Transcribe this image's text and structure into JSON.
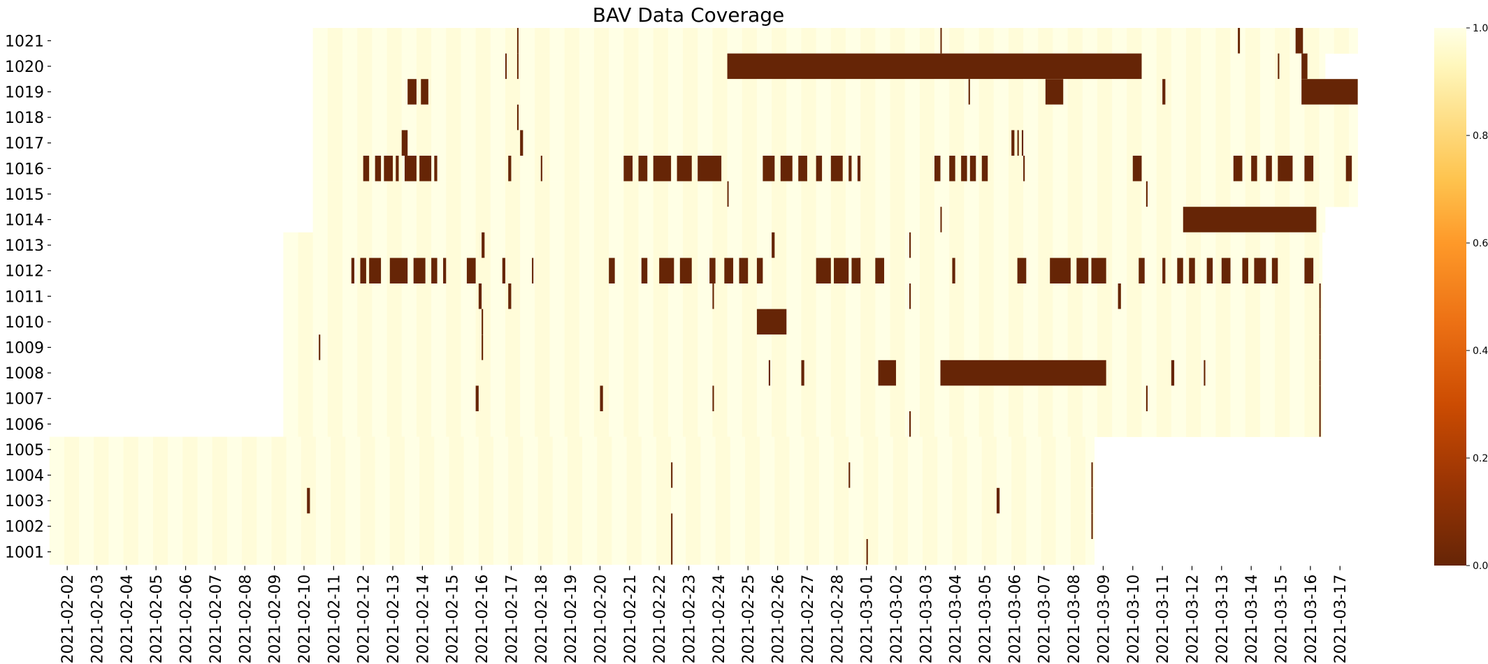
{
  "chart_data": {
    "type": "heatmap",
    "title": "BAV Data Coverage",
    "xlabel": "",
    "ylabel": "",
    "x_dates": [
      "2021-02-02",
      "2021-02-03",
      "2021-02-04",
      "2021-02-05",
      "2021-02-06",
      "2021-02-07",
      "2021-02-08",
      "2021-02-09",
      "2021-02-10",
      "2021-02-11",
      "2021-02-12",
      "2021-02-13",
      "2021-02-14",
      "2021-02-15",
      "2021-02-16",
      "2021-02-17",
      "2021-02-18",
      "2021-02-19",
      "2021-02-20",
      "2021-02-21",
      "2021-02-22",
      "2021-02-23",
      "2021-02-24",
      "2021-02-25",
      "2021-02-26",
      "2021-02-27",
      "2021-02-28",
      "2021-03-01",
      "2021-03-02",
      "2021-03-03",
      "2021-03-04",
      "2021-03-05",
      "2021-03-06",
      "2021-03-07",
      "2021-03-08",
      "2021-03-09",
      "2021-03-10",
      "2021-03-11",
      "2021-03-12",
      "2021-03-13",
      "2021-03-14",
      "2021-03-15",
      "2021-03-16",
      "2021-03-17"
    ],
    "colorbar": {
      "min": 0.0,
      "max": 1.0,
      "ticks": [
        "0.0",
        "0.2",
        "0.4",
        "0.6",
        "0.8",
        "1.0"
      ],
      "colormap": "YlOrBr reversed"
    },
    "colors": {
      "full": "#ffffe5",
      "full_alt": "#fffcd9",
      "empty": "#662506"
    },
    "sensors": [
      {
        "id": "1021",
        "start": "2021-02-10.8",
        "end": "2021-03-18.1",
        "gaps": [
          [
            "2021-02-17.7",
            "2021-02-17.72"
          ],
          [
            "2021-03-04.0",
            "2021-03-04.02"
          ],
          [
            "2021-03-14.05",
            "2021-03-14.12"
          ],
          [
            "2021-03-16.0",
            "2021-03-16.25"
          ]
        ]
      },
      {
        "id": "1020",
        "start": "2021-02-10.8",
        "end": "2021-03-17.0",
        "gaps": [
          [
            "2021-02-17.3",
            "2021-02-17.34"
          ],
          [
            "2021-02-17.7",
            "2021-02-17.72"
          ],
          [
            "2021-02-24.8",
            "2021-03-10.8"
          ],
          [
            "2021-03-15.4",
            "2021-03-15.45"
          ],
          [
            "2021-03-16.2",
            "2021-03-16.4"
          ]
        ]
      },
      {
        "id": "1019",
        "start": "2021-02-10.8",
        "end": "2021-03-18.1",
        "gaps": [
          [
            "2021-02-14.0",
            "2021-02-14.3"
          ],
          [
            "2021-02-14.45",
            "2021-02-14.7"
          ],
          [
            "2021-03-04.95",
            "2021-03-05.0"
          ],
          [
            "2021-03-07.55",
            "2021-03-08.15"
          ],
          [
            "2021-03-11.5",
            "2021-03-11.6"
          ],
          [
            "2021-03-16.2",
            "2021-03-18.1"
          ]
        ]
      },
      {
        "id": "1018",
        "start": "2021-02-10.8",
        "end": "2021-03-18.1",
        "gaps": [
          [
            "2021-02-17.7",
            "2021-02-17.75"
          ]
        ]
      },
      {
        "id": "1017",
        "start": "2021-02-10.8",
        "end": "2021-03-18.1",
        "gaps": [
          [
            "2021-02-13.8",
            "2021-02-14.0"
          ],
          [
            "2021-02-17.8",
            "2021-02-17.9"
          ],
          [
            "2021-03-06.4",
            "2021-03-06.5"
          ],
          [
            "2021-03-06.6",
            "2021-03-06.65"
          ],
          [
            "2021-03-06.75",
            "2021-03-06.8"
          ]
        ]
      },
      {
        "id": "1016",
        "start": "2021-02-10.8",
        "end": "2021-03-18.1",
        "gaps": [
          [
            "2021-02-12.5",
            "2021-02-12.7"
          ],
          [
            "2021-02-12.9",
            "2021-02-13.1"
          ],
          [
            "2021-02-13.2",
            "2021-02-13.5"
          ],
          [
            "2021-02-13.6",
            "2021-02-13.7"
          ],
          [
            "2021-02-13.9",
            "2021-02-14.3"
          ],
          [
            "2021-02-14.4",
            "2021-02-14.8"
          ],
          [
            "2021-02-14.9",
            "2021-02-15.0"
          ],
          [
            "2021-02-17.4",
            "2021-02-17.5"
          ],
          [
            "2021-02-18.5",
            "2021-02-18.55"
          ],
          [
            "2021-02-21.3",
            "2021-02-21.6"
          ],
          [
            "2021-02-21.8",
            "2021-02-22.1"
          ],
          [
            "2021-02-22.3",
            "2021-02-22.9"
          ],
          [
            "2021-02-23.1",
            "2021-02-23.6"
          ],
          [
            "2021-02-23.8",
            "2021-02-24.6"
          ],
          [
            "2021-02-26.0",
            "2021-02-26.4"
          ],
          [
            "2021-02-26.6",
            "2021-02-27.0"
          ],
          [
            "2021-02-27.2",
            "2021-02-27.5"
          ],
          [
            "2021-02-27.8",
            "2021-02-28.0"
          ],
          [
            "2021-02-28.3",
            "2021-02-28.7"
          ],
          [
            "2021-02-28.9",
            "2021-02-29.0"
          ],
          [
            "2021-02-29.2",
            "2021-02-29.3"
          ],
          [
            "2021-03-03.8",
            "2021-03-04.0"
          ],
          [
            "2021-03-04.3",
            "2021-03-04.5"
          ],
          [
            "2021-03-04.7",
            "2021-03-04.9"
          ],
          [
            "2021-03-05.0",
            "2021-03-05.2"
          ],
          [
            "2021-03-05.4",
            "2021-03-05.6"
          ],
          [
            "2021-03-06.8",
            "2021-03-06.85"
          ],
          [
            "2021-03-10.5",
            "2021-03-10.8"
          ],
          [
            "2021-03-13.9",
            "2021-03-14.2"
          ],
          [
            "2021-03-14.5",
            "2021-03-14.7"
          ],
          [
            "2021-03-15.0",
            "2021-03-15.2"
          ],
          [
            "2021-03-15.4",
            "2021-03-15.9"
          ],
          [
            "2021-03-16.3",
            "2021-03-16.6"
          ],
          [
            "2021-03-17.7",
            "2021-03-17.9"
          ]
        ]
      },
      {
        "id": "1015",
        "start": "2021-02-10.8",
        "end": "2021-03-18.1",
        "gaps": [
          [
            "2021-02-24.8",
            "2021-02-24.82"
          ],
          [
            "2021-03-10.95",
            "2021-03-11.0"
          ]
        ]
      },
      {
        "id": "1014",
        "start": "2021-02-10.8",
        "end": "2021-03-17.0",
        "gaps": [
          [
            "2021-03-04.0",
            "2021-03-04.02"
          ],
          [
            "2021-03-12.2",
            "2021-03-16.7"
          ]
        ]
      },
      {
        "id": "1013",
        "start": "2021-02-09.8",
        "end": "2021-03-16.9",
        "gaps": [
          [
            "2021-02-16.5",
            "2021-02-16.6"
          ],
          [
            "2021-02-26.3",
            "2021-02-26.4"
          ],
          [
            "2021-03-02.95",
            "2021-03-03.0"
          ]
        ]
      },
      {
        "id": "1012",
        "start": "2021-02-09.8",
        "end": "2021-03-16.9",
        "gaps": [
          [
            "2021-02-12.1",
            "2021-02-12.2"
          ],
          [
            "2021-02-12.4",
            "2021-02-12.6"
          ],
          [
            "2021-02-12.7",
            "2021-02-13.1"
          ],
          [
            "2021-02-13.4",
            "2021-02-14.0"
          ],
          [
            "2021-02-14.2",
            "2021-02-14.6"
          ],
          [
            "2021-02-14.8",
            "2021-02-15.0"
          ],
          [
            "2021-02-15.2",
            "2021-02-15.3"
          ],
          [
            "2021-02-16.0",
            "2021-02-16.3"
          ],
          [
            "2021-02-17.2",
            "2021-02-17.3"
          ],
          [
            "2021-02-18.2",
            "2021-02-18.25"
          ],
          [
            "2021-02-20.8",
            "2021-02-21.0"
          ],
          [
            "2021-02-21.9",
            "2021-02-22.1"
          ],
          [
            "2021-02-22.5",
            "2021-02-23.0"
          ],
          [
            "2021-02-23.2",
            "2021-02-23.6"
          ],
          [
            "2021-02-24.2",
            "2021-02-24.4"
          ],
          [
            "2021-02-24.7",
            "2021-02-25.0"
          ],
          [
            "2021-02-25.2",
            "2021-02-25.5"
          ],
          [
            "2021-02-25.8",
            "2021-02-26.0"
          ],
          [
            "2021-02-27.8",
            "2021-02-28.3"
          ],
          [
            "2021-02-28.4",
            "2021-02-28.9"
          ],
          [
            "2021-02-29.0",
            "2021-02-29.3"
          ],
          [
            "2021-03-01.2",
            "2021-03-01.3"
          ],
          [
            "2021-03-01.8",
            "2021-03-02.1"
          ],
          [
            "2021-03-04.4",
            "2021-03-04.5"
          ],
          [
            "2021-03-06.6",
            "2021-03-06.9"
          ],
          [
            "2021-03-07.7",
            "2021-03-08.4"
          ],
          [
            "2021-03-08.6",
            "2021-03-09.0"
          ],
          [
            "2021-03-09.1",
            "2021-03-09.6"
          ],
          [
            "2021-03-10.7",
            "2021-03-10.9"
          ],
          [
            "2021-03-11.5",
            "2021-03-11.6"
          ],
          [
            "2021-03-12.0",
            "2021-03-12.2"
          ],
          [
            "2021-03-12.4",
            "2021-03-12.6"
          ],
          [
            "2021-03-13.0",
            "2021-03-13.2"
          ],
          [
            "2021-03-13.5",
            "2021-03-13.8"
          ],
          [
            "2021-03-14.2",
            "2021-03-14.4"
          ],
          [
            "2021-03-14.6",
            "2021-03-15.0"
          ],
          [
            "2021-03-15.2",
            "2021-03-15.4"
          ],
          [
            "2021-03-16.3",
            "2021-03-16.6"
          ]
        ]
      },
      {
        "id": "1011",
        "start": "2021-02-09.8",
        "end": "2021-03-16.9",
        "gaps": [
          [
            "2021-02-16.4",
            "2021-02-16.5"
          ],
          [
            "2021-02-17.4",
            "2021-02-17.5"
          ],
          [
            "2021-02-24.3",
            "2021-02-24.35"
          ],
          [
            "2021-03-02.95",
            "2021-03-03.0"
          ],
          [
            "2021-03-10.0",
            "2021-03-10.1"
          ],
          [
            "2021-03-16.8",
            "2021-03-16.85"
          ]
        ]
      },
      {
        "id": "1010",
        "start": "2021-02-09.8",
        "end": "2021-03-16.9",
        "gaps": [
          [
            "2021-02-16.5",
            "2021-02-16.55"
          ],
          [
            "2021-02-25.8",
            "2021-02-26.8"
          ],
          [
            "2021-03-16.8",
            "2021-03-16.85"
          ]
        ]
      },
      {
        "id": "1009",
        "start": "2021-02-09.8",
        "end": "2021-03-16.9",
        "gaps": [
          [
            "2021-02-11.0",
            "2021-02-11.05"
          ],
          [
            "2021-02-16.5",
            "2021-02-16.55"
          ],
          [
            "2021-03-16.8",
            "2021-03-16.85"
          ]
        ]
      },
      {
        "id": "1008",
        "start": "2021-02-09.8",
        "end": "2021-03-16.9",
        "gaps": [
          [
            "2021-02-26.2",
            "2021-02-26.25"
          ],
          [
            "2021-02-27.3",
            "2021-02-27.4"
          ],
          [
            "2021-03-01.9",
            "2021-03-02.5"
          ],
          [
            "2021-03-04.0",
            "2021-03-09.6"
          ],
          [
            "2021-03-11.8",
            "2021-03-11.9"
          ],
          [
            "2021-03-12.9",
            "2021-03-12.95"
          ],
          [
            "2021-03-16.8",
            "2021-03-16.85"
          ]
        ]
      },
      {
        "id": "1007",
        "start": "2021-02-09.8",
        "end": "2021-03-16.9",
        "gaps": [
          [
            "2021-02-16.3",
            "2021-02-16.4"
          ],
          [
            "2021-02-20.5",
            "2021-02-20.6"
          ],
          [
            "2021-02-24.3",
            "2021-02-24.35"
          ],
          [
            "2021-03-10.95",
            "2021-03-11.0"
          ],
          [
            "2021-03-16.8",
            "2021-03-16.85"
          ]
        ]
      },
      {
        "id": "1006",
        "start": "2021-02-09.8",
        "end": "2021-03-16.9",
        "gaps": [
          [
            "2021-03-02.95",
            "2021-03-03.0"
          ],
          [
            "2021-03-16.8",
            "2021-03-16.85"
          ]
        ]
      },
      {
        "id": "1005",
        "start": "2021-02-01.9",
        "end": "2021-03-09.2",
        "gaps": []
      },
      {
        "id": "1004",
        "start": "2021-02-01.9",
        "end": "2021-03-09.2",
        "gaps": [
          [
            "2021-02-22.9",
            "2021-02-22.95"
          ],
          [
            "2021-02-28.9",
            "2021-02-28.95"
          ],
          [
            "2021-03-09.1",
            "2021-03-09.15"
          ]
        ]
      },
      {
        "id": "1003",
        "start": "2021-02-01.9",
        "end": "2021-03-09.2",
        "gaps": [
          [
            "2021-02-10.6",
            "2021-02-10.7"
          ],
          [
            "2021-03-05.9",
            "2021-03-06.0"
          ],
          [
            "2021-03-09.1",
            "2021-03-09.15"
          ]
        ]
      },
      {
        "id": "1002",
        "start": "2021-02-01.9",
        "end": "2021-03-09.2",
        "gaps": [
          [
            "2021-02-22.9",
            "2021-02-22.95"
          ],
          [
            "2021-03-09.1",
            "2021-03-09.15"
          ]
        ]
      },
      {
        "id": "1001",
        "start": "2021-02-01.9",
        "end": "2021-03-09.2",
        "gaps": [
          [
            "2021-02-22.9",
            "2021-02-22.95"
          ],
          [
            "2021-03-01.5",
            "2021-03-01.55"
          ]
        ]
      }
    ]
  }
}
